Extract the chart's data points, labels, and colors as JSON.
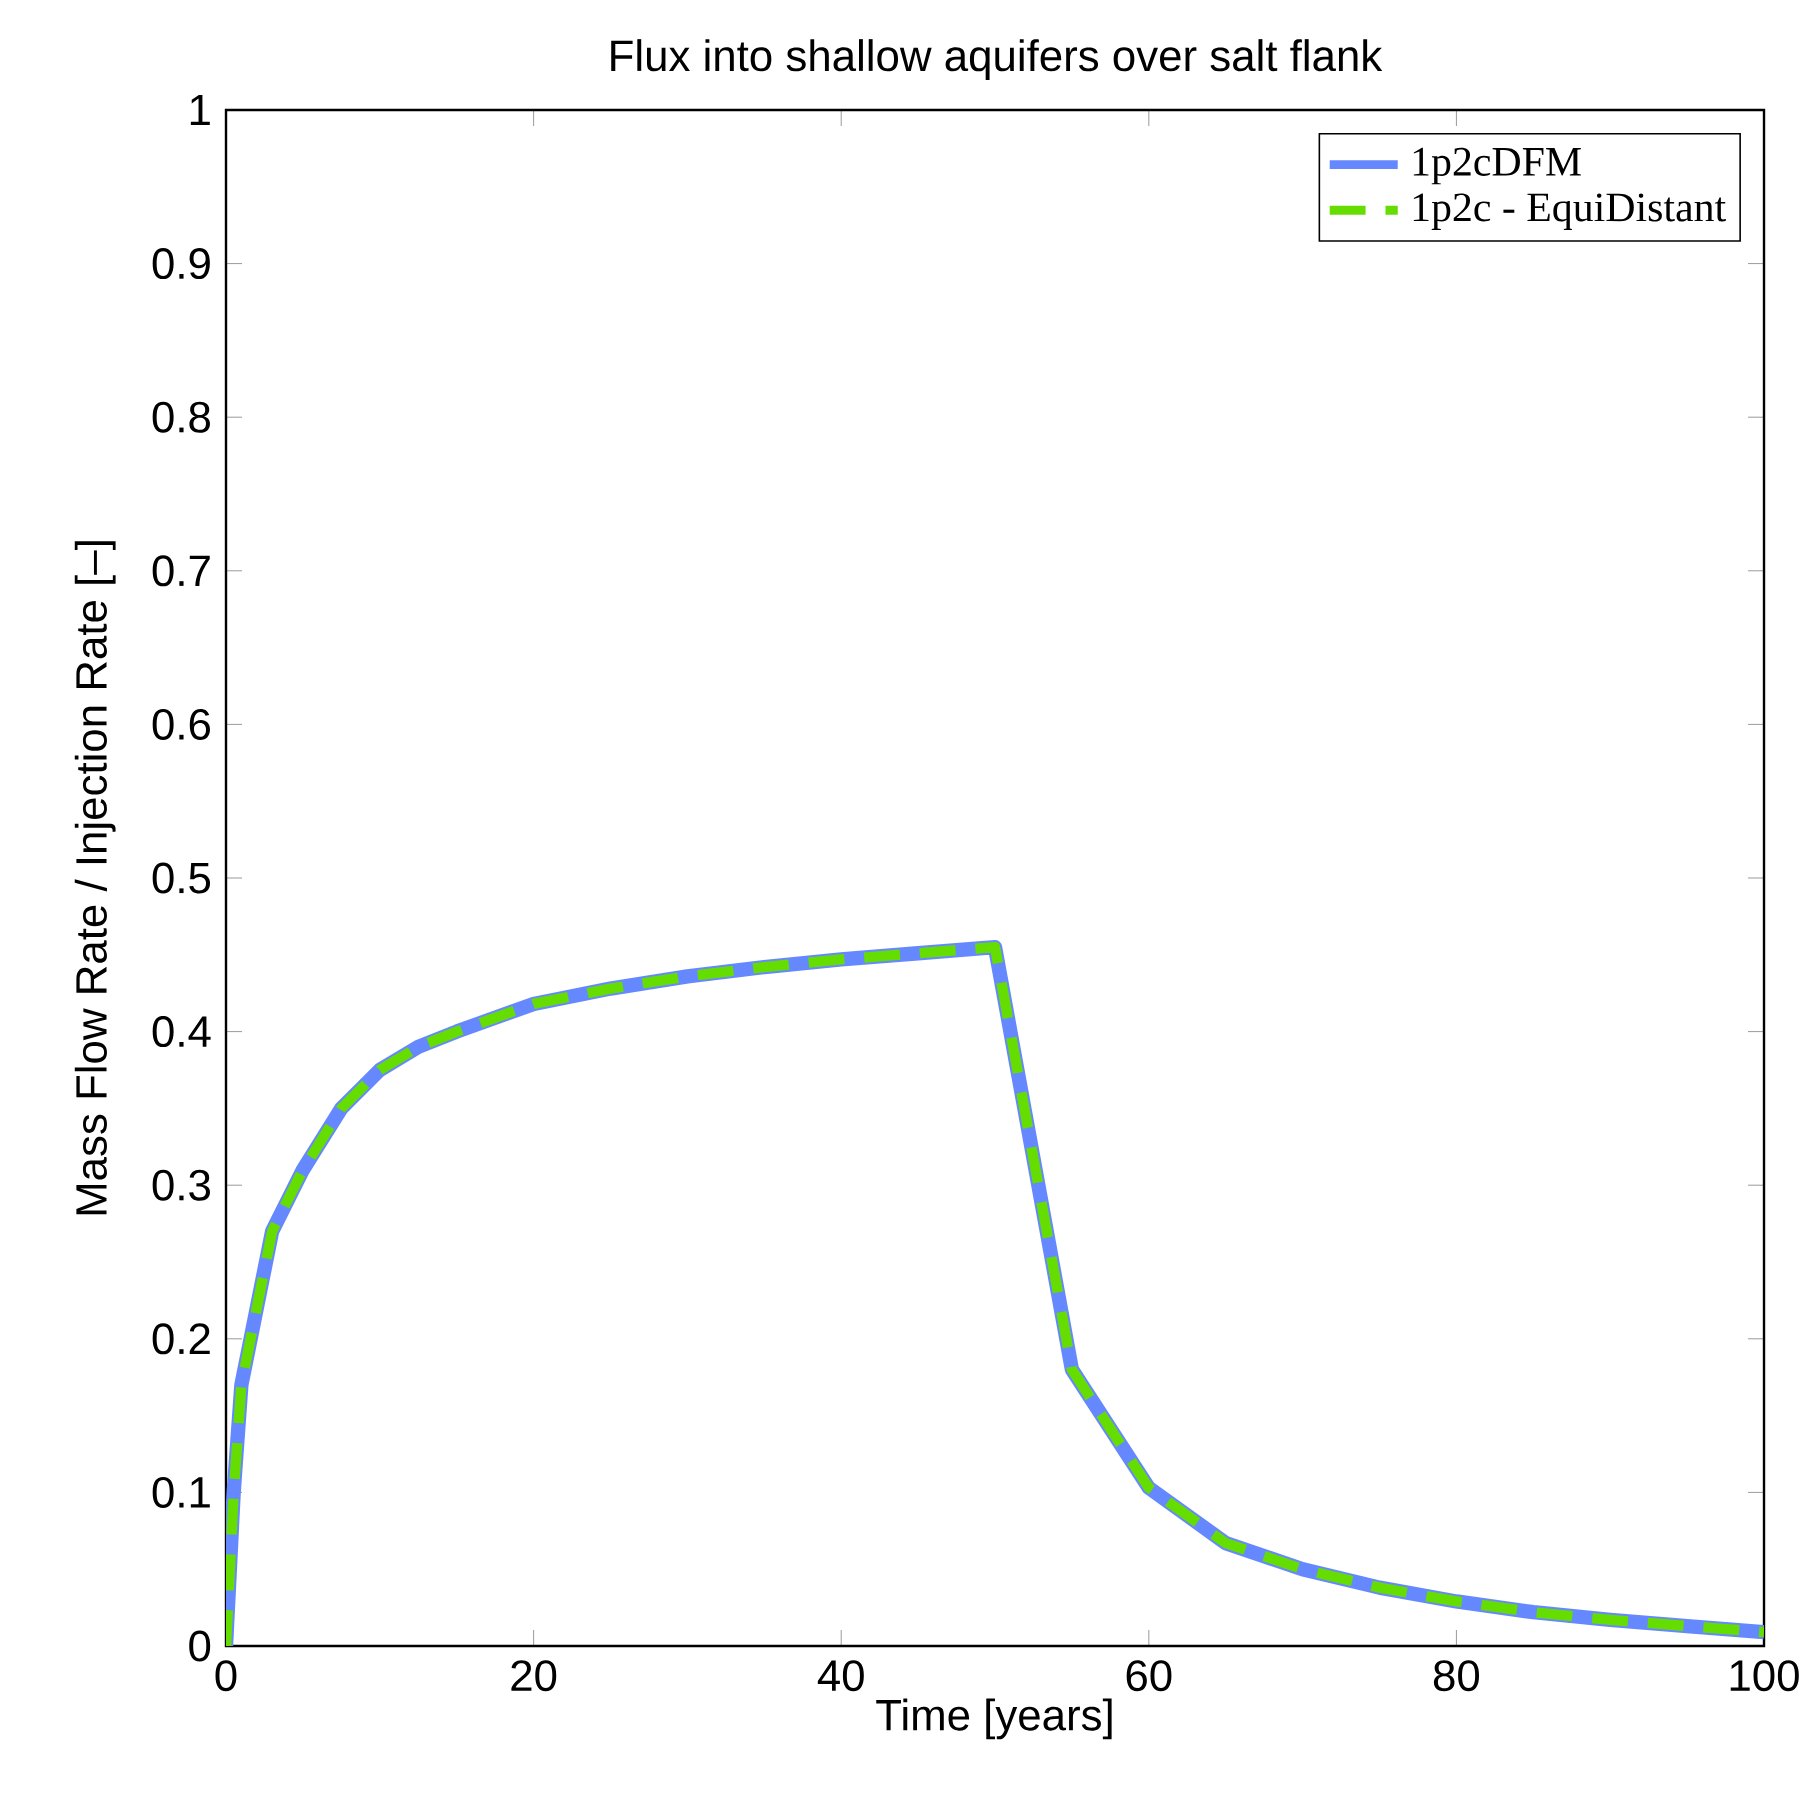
{
  "chart_data": {
    "type": "line",
    "title": "Flux into shallow aquifers over salt flank",
    "xlabel": "Time [years]",
    "ylabel": "Mass Flow Rate / Injection Rate [–]",
    "xlim": [
      0,
      100
    ],
    "ylim": [
      0,
      1
    ],
    "xticks": [
      0,
      20,
      40,
      60,
      80,
      100
    ],
    "yticks": [
      0,
      0.1,
      0.2,
      0.3,
      0.4,
      0.5,
      0.6,
      0.7,
      0.8,
      0.9,
      1
    ],
    "legend": "top right",
    "grid": false,
    "series": [
      {
        "name": "1p2cDFM",
        "color": "#6688ff",
        "line_style": "solid",
        "x": [
          0,
          0.5,
          1,
          2,
          3,
          5,
          7.5,
          10,
          12.5,
          15,
          20,
          25,
          30,
          35,
          40,
          45,
          50,
          55,
          60,
          65,
          70,
          75,
          80,
          85,
          90,
          95,
          100
        ],
        "values": [
          0,
          0.1,
          0.17,
          0.22,
          0.27,
          0.31,
          0.35,
          0.375,
          0.39,
          0.4,
          0.418,
          0.428,
          0.436,
          0.442,
          0.447,
          0.451,
          0.455,
          0.18,
          0.103,
          0.067,
          0.05,
          0.038,
          0.029,
          0.022,
          0.017,
          0.013,
          0.009
        ]
      },
      {
        "name": "1p2c - EquiDistant",
        "color": "#66dd00",
        "line_style": "dashed",
        "x": [
          0,
          0.5,
          1,
          2,
          3,
          5,
          7.5,
          10,
          12.5,
          15,
          20,
          25,
          30,
          35,
          40,
          45,
          50,
          55,
          60,
          65,
          70,
          75,
          80,
          85,
          90,
          95,
          100
        ],
        "values": [
          0,
          0.1,
          0.17,
          0.22,
          0.27,
          0.31,
          0.35,
          0.375,
          0.39,
          0.4,
          0.418,
          0.428,
          0.436,
          0.442,
          0.447,
          0.451,
          0.455,
          0.18,
          0.103,
          0.067,
          0.05,
          0.038,
          0.029,
          0.022,
          0.017,
          0.013,
          0.009
        ]
      }
    ]
  }
}
